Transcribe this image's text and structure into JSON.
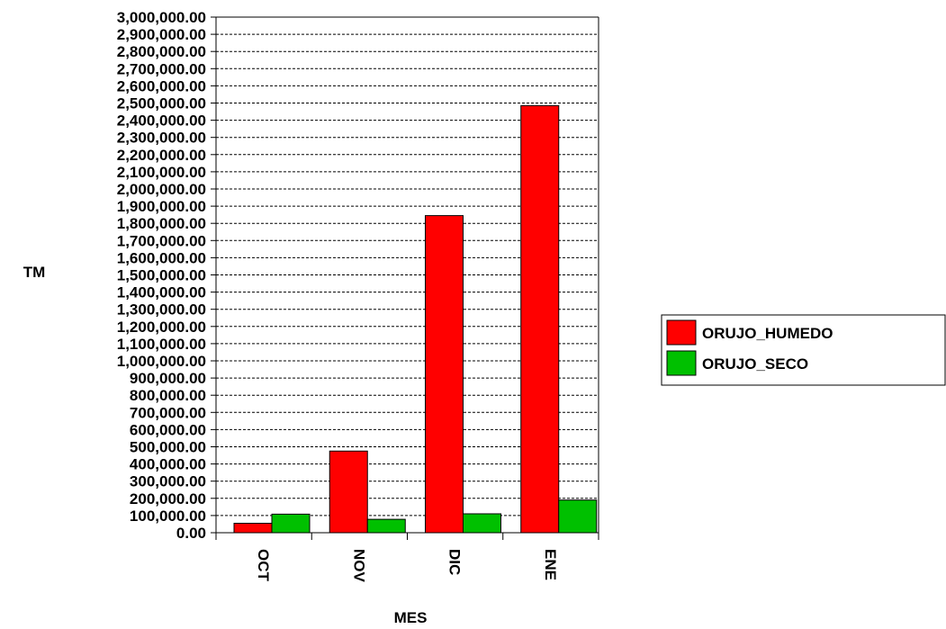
{
  "chart_data": {
    "type": "bar",
    "categories": [
      "OCT",
      "NOV",
      "DIC",
      "ENE"
    ],
    "series": [
      {
        "name": "ORUJO_HUMEDO",
        "color": "#ff0000",
        "values": [
          55000,
          475000,
          1845000,
          2485000
        ]
      },
      {
        "name": "ORUJO_SECO",
        "color": "#00c000",
        "values": [
          108000,
          78000,
          110000,
          190000
        ]
      }
    ],
    "xlabel": "MES",
    "ylabel": "TM",
    "ylim": [
      0,
      3000000
    ],
    "ytick_step": 100000,
    "ytick_labels": [
      "0.00",
      "100,000.00",
      "200,000.00",
      "300,000.00",
      "400,000.00",
      "500,000.00",
      "600,000.00",
      "700,000.00",
      "800,000.00",
      "900,000.00",
      "1,000,000.00",
      "1,100,000.00",
      "1,200,000.00",
      "1,300,000.00",
      "1,400,000.00",
      "1,500,000.00",
      "1,600,000.00",
      "1,700,000.00",
      "1,800,000.00",
      "1,900,000.00",
      "2,000,000.00",
      "2,100,000.00",
      "2,200,000.00",
      "2,300,000.00",
      "2,400,000.00",
      "2,500,000.00",
      "2,600,000.00",
      "2,700,000.00",
      "2,800,000.00",
      "2,900,000.00",
      "3,000,000.00"
    ],
    "grid": true,
    "grid_style": "dashed",
    "legend_position": "right"
  }
}
